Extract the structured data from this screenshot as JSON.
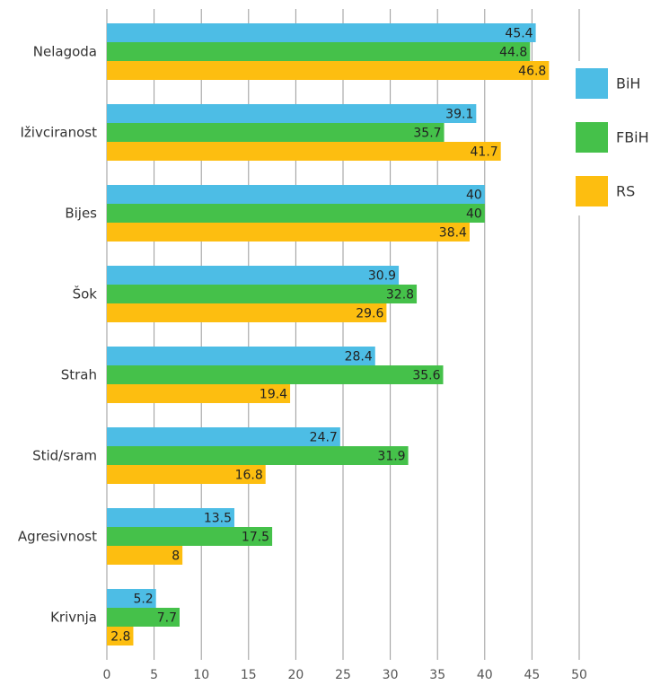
{
  "chart_data": {
    "type": "bar",
    "orientation": "horizontal",
    "categories": [
      "Nelagoda",
      "Iživciranost",
      "Bijes",
      "Šok",
      "Strah",
      "Stid/sram",
      "Agresivnost",
      "Krivnja"
    ],
    "series": [
      {
        "name": "BiH",
        "color": "#4dbde5",
        "values": [
          45.4,
          39.1,
          40,
          30.9,
          28.4,
          24.7,
          13.5,
          5.2
        ]
      },
      {
        "name": "FBiH",
        "color": "#45c14a",
        "values": [
          44.8,
          35.7,
          40,
          32.8,
          35.6,
          31.9,
          17.5,
          7.7
        ]
      },
      {
        "name": "RS",
        "color": "#fdbe10",
        "values": [
          46.8,
          41.7,
          38.4,
          29.6,
          19.4,
          16.8,
          8,
          2.8
        ]
      }
    ],
    "xlim": [
      0,
      50
    ],
    "xticks": [
      0,
      5,
      10,
      15,
      20,
      25,
      30,
      35,
      40,
      45,
      50
    ],
    "grid": true,
    "legend": "right"
  }
}
